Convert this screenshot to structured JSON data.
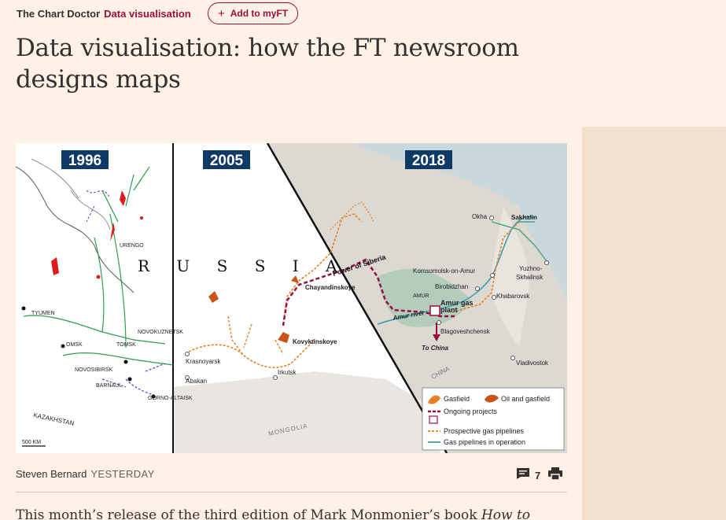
{
  "header": {
    "series": "The Chart Doctor",
    "topic": "Data visualisation",
    "myft_label": "Add to myFT",
    "title": "Data visualisation: how the FT newsroom designs maps"
  },
  "figure": {
    "years": [
      "1996",
      "2005",
      "2018"
    ],
    "labels_1996": {
      "russia": "R U S S I A",
      "urengoy": "URENGO",
      "tyumen": "TYUMEN",
      "omsk": "OMSK",
      "tomsk": "TOMSK",
      "novokuznetsk": "NOVOKUZNETSK",
      "novosibirsk": "NOVOSIBIRSK",
      "barnaul": "BARNAUL",
      "gorno": "GORNO-ALTAISK",
      "kazakhstan": "KAZAKHSTAN",
      "scale": "500 KM"
    },
    "labels_2005": {
      "krasnoyarsk": "Krasnoyarsk",
      "abakan": "Abakan",
      "irkutsk": "Irkutsk",
      "kovykta": "Kovyktinskoye",
      "chayanda": "Chayandinskoye",
      "mongolia": "MONGOLIA"
    },
    "labels_2018": {
      "power": "Power of Siberia",
      "okha": "Okha",
      "sakhalin": "Sakhalin",
      "komsomolsk": "Komsomolsk-on-Amur",
      "yuzhno1": "Yuzhno-",
      "yuzhno2": "Skhalinsk",
      "birobidzhan": "Birobidzhan",
      "amur": "AMUR",
      "amur_plant1": "Amur gas",
      "amur_plant2": "plant",
      "khabarovsk": "Khabarovsk",
      "amur_river": "Amur river",
      "blagoveshchensk": "Blagoveshchensk",
      "to_china": "To China",
      "vladivostok": "Vladivostok",
      "china": "CHINA"
    },
    "legend": {
      "gasfield": "Gasfield",
      "oil_gasfield": "Oil and gasfield",
      "ongoing": "Ongoing projects",
      "prospective": "Prospective gas pipelines",
      "operation": "Gas pipelines in operation"
    }
  },
  "article": {
    "author": "Steven Bernard",
    "time": "YESTERDAY",
    "comments": "7",
    "first_line": "This month’s release of the third edition of Mark Monmonier’s book ",
    "first_line_italic": "How to"
  },
  "colors": {
    "ft_pink": "#fff1e5",
    "claret": "#990f3d",
    "year_box": "#0f3a66",
    "ongoing": "#990f3d",
    "prospective": "#e67e22",
    "operation": "#4aa37e"
  }
}
